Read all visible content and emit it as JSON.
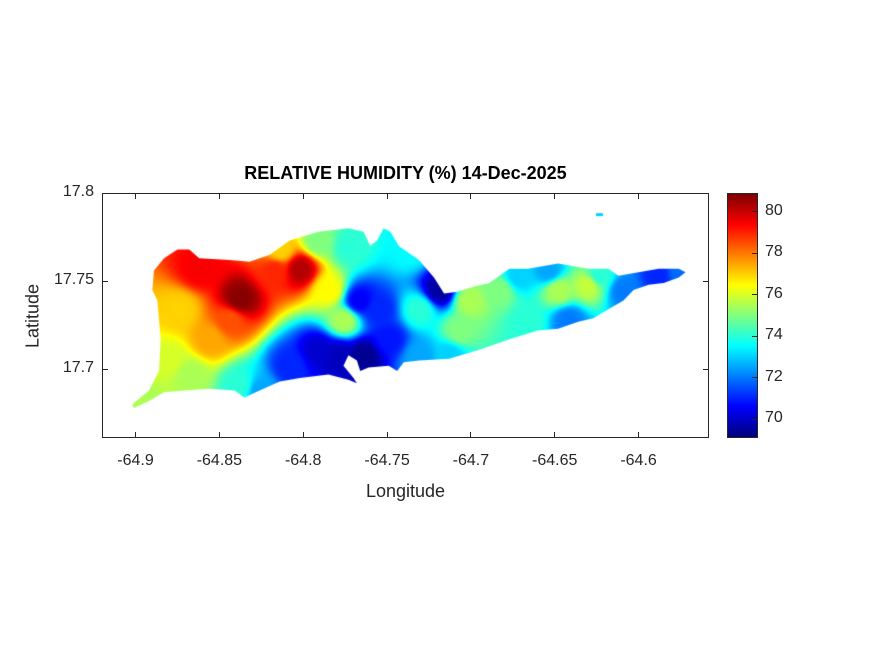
{
  "chart_data": {
    "type": "heatmap",
    "title": "RELATIVE HUMIDITY (%) 14-Dec-2025",
    "xlabel": "Longitude",
    "ylabel": "Latitude",
    "xlim": [
      -64.92,
      -64.558
    ],
    "ylim": [
      17.661,
      17.8
    ],
    "xticks": [
      -64.9,
      -64.85,
      -64.8,
      -64.75,
      -64.7,
      -64.65,
      -64.6
    ],
    "xtick_labels": [
      "-64.9",
      "-64.85",
      "-64.8",
      "-64.75",
      "-64.7",
      "-64.65",
      "-64.6"
    ],
    "yticks": [
      17.7,
      17.75,
      17.8
    ],
    "ytick_labels": [
      "17.7",
      "17.75",
      "17.8"
    ],
    "colormap": "jet",
    "clim": [
      69.1,
      80.9
    ],
    "colorbar_ticks": [
      70,
      72,
      74,
      76,
      78,
      80
    ],
    "colorbar_tick_labels": [
      "70",
      "72",
      "74",
      "76",
      "78",
      "80"
    ],
    "grid": false,
    "land_outline_lon_lat": [
      [
        -64.902,
        17.68
      ],
      [
        -64.892,
        17.688
      ],
      [
        -64.886,
        17.699
      ],
      [
        -64.885,
        17.717
      ],
      [
        -64.887,
        17.739
      ],
      [
        -64.89,
        17.745
      ],
      [
        -64.889,
        17.756
      ],
      [
        -64.883,
        17.763
      ],
      [
        -64.875,
        17.768
      ],
      [
        -64.868,
        17.768
      ],
      [
        -64.862,
        17.763
      ],
      [
        -64.844,
        17.762
      ],
      [
        -64.832,
        17.761
      ],
      [
        -64.82,
        17.765
      ],
      [
        -64.808,
        17.773
      ],
      [
        -64.791,
        17.778
      ],
      [
        -64.773,
        17.78
      ],
      [
        -64.764,
        17.778
      ],
      [
        -64.76,
        17.77
      ],
      [
        -64.756,
        17.773
      ],
      [
        -64.752,
        17.78
      ],
      [
        -64.748,
        17.778
      ],
      [
        -64.743,
        17.77
      ],
      [
        -64.731,
        17.762
      ],
      [
        -64.722,
        17.752
      ],
      [
        -64.716,
        17.743
      ],
      [
        -64.708,
        17.744
      ],
      [
        -64.698,
        17.747
      ],
      [
        -64.689,
        17.749
      ],
      [
        -64.683,
        17.753
      ],
      [
        -64.677,
        17.757
      ],
      [
        -64.666,
        17.757
      ],
      [
        -64.648,
        17.76
      ],
      [
        -64.63,
        17.757
      ],
      [
        -64.618,
        17.757
      ],
      [
        -64.612,
        17.753
      ],
      [
        -64.6,
        17.755
      ],
      [
        -64.588,
        17.757
      ],
      [
        -64.576,
        17.757
      ],
      [
        -64.572,
        17.755
      ],
      [
        -64.576,
        17.752
      ],
      [
        -64.585,
        17.749
      ],
      [
        -64.594,
        17.748
      ],
      [
        -64.603,
        17.745
      ],
      [
        -64.609,
        17.739
      ],
      [
        -64.618,
        17.734
      ],
      [
        -64.627,
        17.729
      ],
      [
        -64.636,
        17.727
      ],
      [
        -64.648,
        17.723
      ],
      [
        -64.66,
        17.722
      ],
      [
        -64.677,
        17.717
      ],
      [
        -64.695,
        17.711
      ],
      [
        -64.713,
        17.706
      ],
      [
        -64.731,
        17.705
      ],
      [
        -64.74,
        17.704
      ],
      [
        -64.744,
        17.699
      ],
      [
        -64.749,
        17.702
      ],
      [
        -64.761,
        17.701
      ],
      [
        -64.766,
        17.699
      ],
      [
        -64.768,
        17.705
      ],
      [
        -64.773,
        17.708
      ],
      [
        -64.776,
        17.702
      ],
      [
        -64.77,
        17.695
      ],
      [
        -64.768,
        17.692
      ],
      [
        -64.773,
        17.694
      ],
      [
        -64.785,
        17.697
      ],
      [
        -64.802,
        17.695
      ],
      [
        -64.814,
        17.693
      ],
      [
        -64.826,
        17.688
      ],
      [
        -64.835,
        17.684
      ],
      [
        -64.841,
        17.688
      ],
      [
        -64.856,
        17.689
      ],
      [
        -64.871,
        17.688
      ],
      [
        -64.883,
        17.687
      ],
      [
        -64.892,
        17.682
      ],
      [
        -64.901,
        17.678
      ]
    ],
    "islet_lon_lat": [
      -64.623,
      17.788
    ],
    "islet_value": 73,
    "points": [
      {
        "lon": -64.838,
        "lat": 17.74,
        "value": 80.8
      },
      {
        "lon": -64.862,
        "lat": 17.757,
        "value": 79.5
      },
      {
        "lon": -64.802,
        "lat": 17.757,
        "value": 80.3
      },
      {
        "lon": -64.817,
        "lat": 17.756,
        "value": 79
      },
      {
        "lon": -64.844,
        "lat": 17.728,
        "value": 78.5
      },
      {
        "lon": -64.874,
        "lat": 17.734,
        "value": 77
      },
      {
        "lon": -64.88,
        "lat": 17.705,
        "value": 76
      },
      {
        "lon": -64.898,
        "lat": 17.682,
        "value": 75.5
      },
      {
        "lon": -64.868,
        "lat": 17.697,
        "value": 75.5
      },
      {
        "lon": -64.838,
        "lat": 17.691,
        "value": 74
      },
      {
        "lon": -64.808,
        "lat": 17.702,
        "value": 71
      },
      {
        "lon": -64.791,
        "lat": 17.711,
        "value": 70
      },
      {
        "lon": -64.779,
        "lat": 17.708,
        "value": 69.8
      },
      {
        "lon": -64.764,
        "lat": 17.708,
        "value": 69.3
      },
      {
        "lon": -64.749,
        "lat": 17.717,
        "value": 70.8
      },
      {
        "lon": -64.755,
        "lat": 17.734,
        "value": 71
      },
      {
        "lon": -64.767,
        "lat": 17.739,
        "value": 70.5
      },
      {
        "lon": -64.776,
        "lat": 17.728,
        "value": 75.5
      },
      {
        "lon": -64.785,
        "lat": 17.745,
        "value": 76.5
      },
      {
        "lon": -64.773,
        "lat": 17.77,
        "value": 74
      },
      {
        "lon": -64.791,
        "lat": 17.773,
        "value": 75
      },
      {
        "lon": -64.814,
        "lat": 17.768,
        "value": 77
      },
      {
        "lon": -64.737,
        "lat": 17.768,
        "value": 73.5
      },
      {
        "lon": -64.719,
        "lat": 17.745,
        "value": 69.5
      },
      {
        "lon": -64.731,
        "lat": 17.734,
        "value": 74
      },
      {
        "lon": -64.707,
        "lat": 17.722,
        "value": 75
      },
      {
        "lon": -64.701,
        "lat": 17.739,
        "value": 75.5
      },
      {
        "lon": -64.683,
        "lat": 17.745,
        "value": 75
      },
      {
        "lon": -64.672,
        "lat": 17.753,
        "value": 73
      },
      {
        "lon": -64.654,
        "lat": 17.756,
        "value": 72.5
      },
      {
        "lon": -64.648,
        "lat": 17.745,
        "value": 75.5
      },
      {
        "lon": -64.63,
        "lat": 17.748,
        "value": 75.8
      },
      {
        "lon": -64.624,
        "lat": 17.753,
        "value": 74
      },
      {
        "lon": -64.609,
        "lat": 17.745,
        "value": 72
      },
      {
        "lon": -64.588,
        "lat": 17.753,
        "value": 71
      },
      {
        "lon": -64.576,
        "lat": 17.755,
        "value": 71.8
      },
      {
        "lon": -64.642,
        "lat": 17.728,
        "value": 72
      },
      {
        "lon": -64.666,
        "lat": 17.728,
        "value": 74
      },
      {
        "lon": -64.713,
        "lat": 17.708,
        "value": 73
      },
      {
        "lon": -64.731,
        "lat": 17.707,
        "value": 72.5
      },
      {
        "lon": -64.826,
        "lat": 17.688,
        "value": 72.5
      },
      {
        "lon": -64.856,
        "lat": 17.717,
        "value": 77.5
      }
    ]
  }
}
